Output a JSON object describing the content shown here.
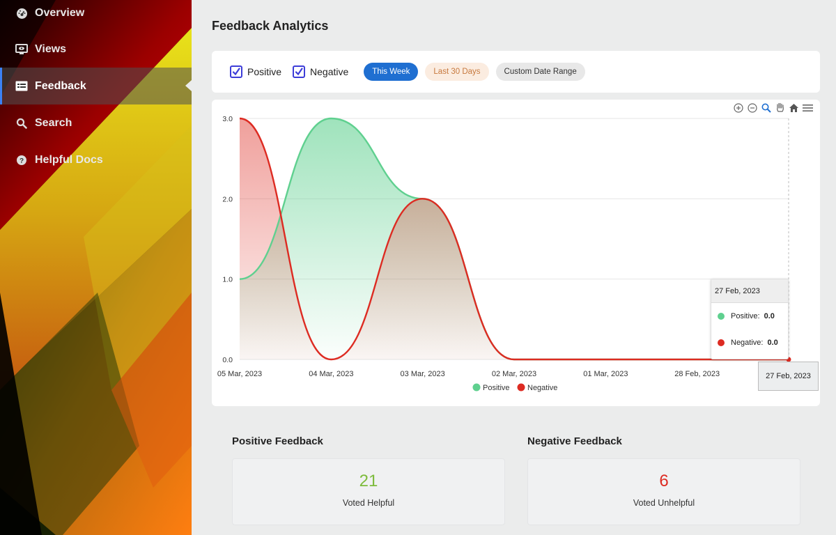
{
  "sidebar": {
    "items": [
      {
        "label": "Overview",
        "icon": "dashboard-icon"
      },
      {
        "label": "Views",
        "icon": "monitor-icon"
      },
      {
        "label": "Feedback",
        "icon": "feedback-icon",
        "active": true
      },
      {
        "label": "Search",
        "icon": "search-icon"
      },
      {
        "label": "Helpful Docs",
        "icon": "help-icon"
      }
    ]
  },
  "header": {
    "title": "Feedback Analytics"
  },
  "filters": {
    "positive_label": "Positive",
    "negative_label": "Negative",
    "this_week": "This Week",
    "last_30": "Last 30 Days",
    "custom": "Custom Date Range"
  },
  "colors": {
    "positive": "#5fd08f",
    "negative": "#dd2b22",
    "accent": "#1f6fd1"
  },
  "chart_data": {
    "type": "area",
    "categories": [
      "05 Mar, 2023",
      "04 Mar, 2023",
      "03 Mar, 2023",
      "02 Mar, 2023",
      "01 Mar, 2023",
      "28 Feb, 2023",
      "27 Feb, 2023"
    ],
    "series": [
      {
        "name": "Positive",
        "values": [
          1,
          3,
          2,
          0,
          0,
          0,
          0
        ]
      },
      {
        "name": "Negative",
        "values": [
          3,
          0,
          2,
          0,
          0,
          0,
          0
        ]
      }
    ],
    "ylim": [
      0,
      3
    ],
    "yticks": [
      "0.0",
      "1.0",
      "2.0",
      "3.0"
    ],
    "legend_position": "bottom"
  },
  "tooltip": {
    "date": "27 Feb, 2023",
    "positive_label": "Positive:",
    "positive_value": "0.0",
    "negative_label": "Negative:",
    "negative_value": "0.0"
  },
  "xaxis_tooltip": "27 Feb, 2023",
  "stats": {
    "positive": {
      "title": "Positive Feedback",
      "value": "21",
      "label": "Voted Helpful"
    },
    "negative": {
      "title": "Negative Feedback",
      "value": "6",
      "label": "Voted Unhelpful"
    }
  }
}
